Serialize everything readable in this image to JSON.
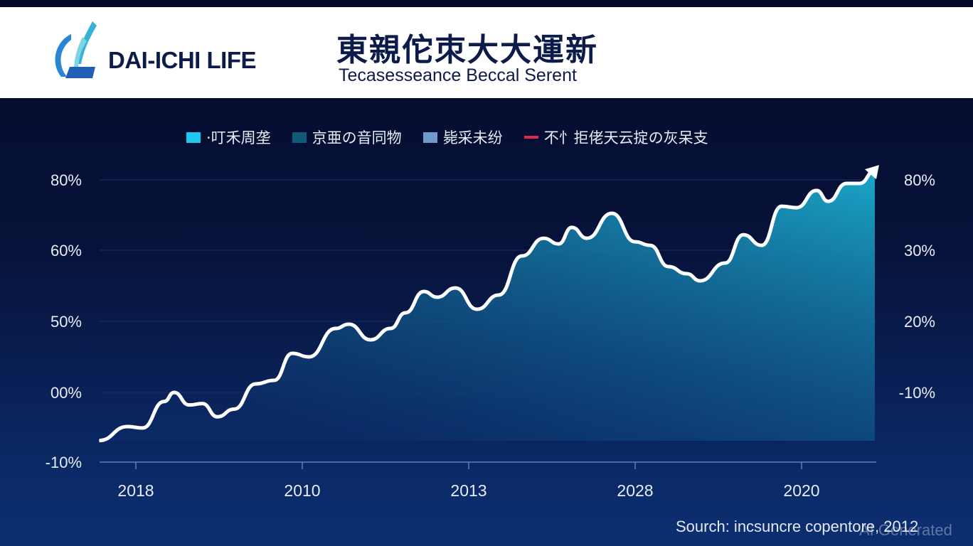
{
  "header": {
    "brand": "DAI-ICHI LIFE",
    "title": "東親佗朿大大運新",
    "subtitle": "Tecasesseance Beccal Serent"
  },
  "legend": [
    {
      "label": "·叮禾周垄",
      "color": "#1ec8ea",
      "kind": "box"
    },
    {
      "label": "京亜の音同物",
      "color": "#0f5a78",
      "kind": "box"
    },
    {
      "label": "毙采未纷",
      "color": "#6f9acb",
      "kind": "box"
    },
    {
      "label": "不忄拒佬天云掟の灰呆支",
      "color": "#e3284a",
      "kind": "line"
    }
  ],
  "chart_data": {
    "type": "area",
    "x_tick_labels": [
      "2018",
      "2010",
      "2013",
      "2028",
      "2020"
    ],
    "y_left_ticks": [
      {
        "value": 80,
        "label": "80%"
      },
      {
        "value": 60,
        "label": "60%"
      },
      {
        "value": 50,
        "label": "50%"
      },
      {
        "value": 0,
        "label": "00%"
      },
      {
        "value": -10,
        "label": "-10%"
      }
    ],
    "y_right_tick_labels": [
      "80%",
      "30%",
      "20%",
      "-10%"
    ],
    "grid": true,
    "legend_position": "top",
    "line_color": "#ffffff",
    "fill_colors": [
      "#1aa6c8",
      "#0b2a66"
    ],
    "series": [
      {
        "x": [
          -0.22,
          -0.05,
          0.04,
          0.17,
          0.23,
          0.32,
          0.4,
          0.49,
          0.59,
          0.72,
          0.83,
          0.94,
          1.04,
          1.2,
          1.28,
          1.41,
          1.53,
          1.62,
          1.73,
          1.81,
          1.92,
          2.05,
          2.18,
          2.32,
          2.45,
          2.54,
          2.62,
          2.71,
          2.86,
          3.0,
          3.09,
          3.2,
          3.31,
          3.39,
          3.54,
          3.65,
          3.76,
          3.88,
          3.97,
          4.09,
          4.16,
          4.27,
          4.35,
          4.44
        ],
        "y": [
          -6.9,
          -4.9,
          -5.1,
          -1.3,
          0,
          -1.8,
          -1.6,
          -3.5,
          -2.4,
          6,
          8.5,
          27.5,
          25,
          45,
          48,
          37,
          45,
          51.2,
          54.2,
          53.4,
          54.7,
          51.7,
          53.7,
          59.2,
          63.4,
          61.8,
          66.5,
          63.4,
          70.5,
          62.4,
          61.4,
          57.7,
          56.7,
          55.7,
          58.2,
          64.4,
          61.4,
          72.5,
          72.1,
          77,
          73.9,
          79,
          79,
          82.6
        ]
      }
    ]
  },
  "source": "Sourch: incsuncre copentore, 2012",
  "watermark": "AI Generated"
}
